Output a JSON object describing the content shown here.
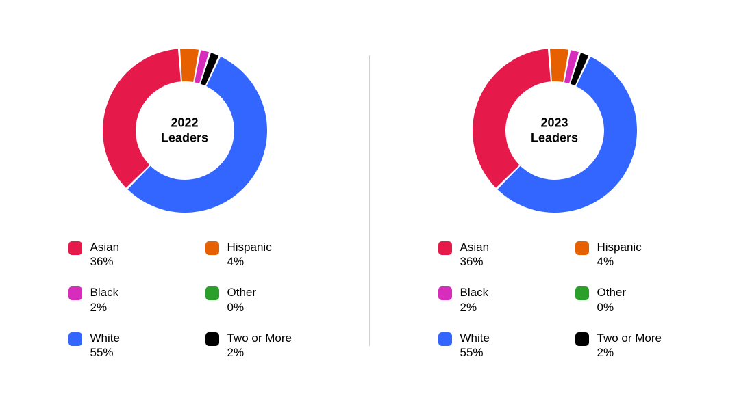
{
  "background_color": "#ffffff",
  "divider_color": "#d0d0d0",
  "text_color": "#000000",
  "font_family": "Helvetica, Arial, sans-serif",
  "panels": [
    {
      "title_line1": "2022",
      "title_line2": "Leaders",
      "donut": {
        "type": "donut",
        "outer_radius": 120,
        "inner_radius": 72,
        "gap_deg": 1.5,
        "start_angle_deg": 25,
        "slices": [
          {
            "label": "White",
            "value": 55,
            "color": "#3366ff"
          },
          {
            "label": "Asian",
            "value": 36,
            "color": "#e6194b"
          },
          {
            "label": "Hispanic",
            "value": 4,
            "color": "#e66000"
          },
          {
            "label": "Black",
            "value": 2,
            "color": "#d82cbd"
          },
          {
            "label": "Other",
            "value": 0,
            "color": "#2aa02a"
          },
          {
            "label": "Two or More",
            "value": 2,
            "color": "#000000"
          }
        ]
      },
      "legend": [
        {
          "label": "Asian",
          "value": "36%",
          "color": "#e6194b"
        },
        {
          "label": "Hispanic",
          "value": "4%",
          "color": "#e66000"
        },
        {
          "label": "Black",
          "value": "2%",
          "color": "#d82cbd"
        },
        {
          "label": "Other",
          "value": "0%",
          "color": "#2aa02a"
        },
        {
          "label": "White",
          "value": "55%",
          "color": "#3366ff"
        },
        {
          "label": "Two or More",
          "value": "2%",
          "color": "#000000"
        }
      ]
    },
    {
      "title_line1": "2023",
      "title_line2": "Leaders",
      "donut": {
        "type": "donut",
        "outer_radius": 120,
        "inner_radius": 72,
        "gap_deg": 1.5,
        "start_angle_deg": 25,
        "slices": [
          {
            "label": "White",
            "value": 55,
            "color": "#3366ff"
          },
          {
            "label": "Asian",
            "value": 36,
            "color": "#e6194b"
          },
          {
            "label": "Hispanic",
            "value": 4,
            "color": "#e66000"
          },
          {
            "label": "Black",
            "value": 2,
            "color": "#d82cbd"
          },
          {
            "label": "Other",
            "value": 0,
            "color": "#2aa02a"
          },
          {
            "label": "Two or More",
            "value": 2,
            "color": "#000000"
          }
        ]
      },
      "legend": [
        {
          "label": "Asian",
          "value": "36%",
          "color": "#e6194b"
        },
        {
          "label": "Hispanic",
          "value": "4%",
          "color": "#e66000"
        },
        {
          "label": "Black",
          "value": "2%",
          "color": "#d82cbd"
        },
        {
          "label": "Other",
          "value": "0%",
          "color": "#2aa02a"
        },
        {
          "label": "White",
          "value": "55%",
          "color": "#3366ff"
        },
        {
          "label": "Two or More",
          "value": "2%",
          "color": "#000000"
        }
      ]
    }
  ]
}
